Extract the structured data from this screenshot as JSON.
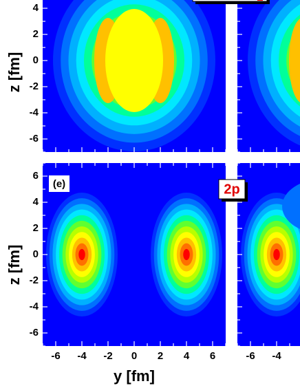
{
  "figure": {
    "y_axis_label": "z [fm]",
    "x_axis_label": "y [fm]",
    "top_left": {
      "yticks": [
        4,
        2,
        0,
        -2,
        -4,
        -6
      ]
    },
    "bottom_left": {
      "label": "(e)",
      "yticks": [
        6,
        4,
        2,
        0,
        -2,
        -4,
        -6
      ],
      "xticks": [
        -6,
        -4,
        -2,
        0,
        2,
        4,
        6
      ]
    },
    "bottom_right": {
      "label": "2p",
      "xticks": [
        -6,
        -4
      ]
    }
  }
}
